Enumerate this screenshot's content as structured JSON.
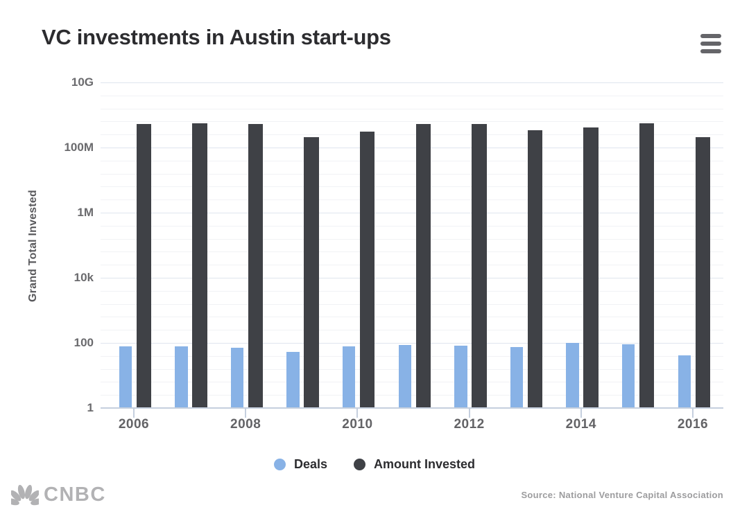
{
  "header": {
    "title": "VC investments in Austin start-ups",
    "menu_icon": "hamburger-icon"
  },
  "chart_data": {
    "type": "bar",
    "title": "VC investments in Austin start-ups",
    "xlabel": "",
    "ylabel": "Grand Total Invested",
    "yscale": "log",
    "ylim": [
      1,
      10000000000
    ],
    "grid": true,
    "legend_position": "bottom",
    "categories": [
      "2006",
      "2007",
      "2008",
      "2009",
      "2010",
      "2011",
      "2012",
      "2013",
      "2014",
      "2015",
      "2016"
    ],
    "x_tick_labels": [
      "2006",
      "2008",
      "2010",
      "2012",
      "2014",
      "2016"
    ],
    "y_ticks": [
      {
        "value": 1,
        "label": "1"
      },
      {
        "value": 100,
        "label": "100"
      },
      {
        "value": 10000,
        "label": "10k"
      },
      {
        "value": 1000000,
        "label": "1M"
      },
      {
        "value": 100000000,
        "label": "100M"
      },
      {
        "value": 10000000000,
        "label": "10G"
      }
    ],
    "series": [
      {
        "name": "Deals",
        "color": "#88b2e6",
        "values": [
          79,
          79,
          71,
          54,
          78,
          85,
          82,
          75,
          100,
          89,
          42
        ]
      },
      {
        "name": "Amount Invested",
        "color": "#3f4146",
        "values": [
          520000000,
          560000000,
          530000000,
          210000000,
          310000000,
          530000000,
          530000000,
          340000000,
          410000000,
          560000000,
          210000000
        ]
      }
    ]
  },
  "legend": {
    "items": [
      {
        "label": "Deals",
        "color": "#88b2e6"
      },
      {
        "label": "Amount Invested",
        "color": "#3f4146"
      }
    ]
  },
  "footer": {
    "brand": "CNBC",
    "source": "Source: National Venture Capital Association"
  },
  "colors": {
    "deals_bar": "#88b2e6",
    "amount_bar": "#3f4146",
    "major_gridline": "#dfe5ee",
    "minor_gridline": "#f1f2f5",
    "axis_line": "#c5cfde",
    "title_text": "#2c2c2f",
    "axis_text": "#6a6a6d",
    "brand_gray": "#b2b2b4"
  }
}
